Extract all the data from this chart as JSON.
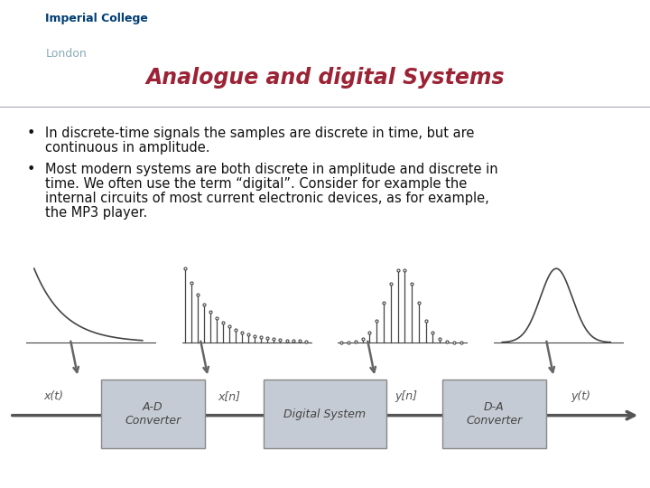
{
  "title": "Analogue and digital Systems",
  "title_color": "#9B2335",
  "title_fontsize": 17,
  "bg_color": "#FFFFFF",
  "header_bg": "#D3D7DC",
  "logo_text1": "Imperial College",
  "logo_text2": "London",
  "logo_color1": "#003E74",
  "logo_color2": "#8BAAB8",
  "bullet1_line1": "In discrete-time signals the samples are discrete in time, but are",
  "bullet1_line2": "continuous in amplitude.",
  "bullet2_line1": "Most modern systems are both discrete in amplitude and discrete in",
  "bullet2_line2": "time. We often use the term “digital”. Consider for example the",
  "bullet2_line3": "internal circuits of most current electronic devices, as for example,",
  "bullet2_line4": "the MP3 player.",
  "text_color": "#111111",
  "text_fontsize": 10.5,
  "box_face": "#C5CBD4",
  "box_edge": "#888888",
  "arrow_color": "#555555",
  "diag_arrow_color": "#666666",
  "signal_color": "#444444",
  "box_text_color": "#444444",
  "sig_label_color": "#555555"
}
